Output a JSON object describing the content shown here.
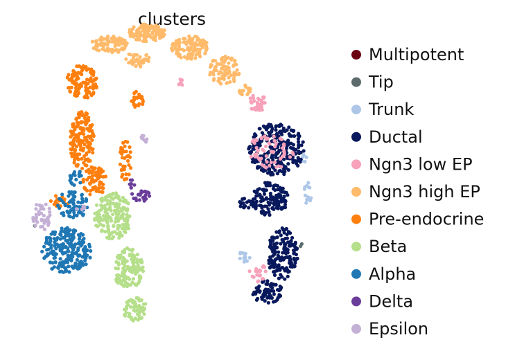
{
  "chart_data": {
    "type": "scatter",
    "title": "clusters",
    "xlabel": "",
    "ylabel": "",
    "xlim": [
      0,
      100
    ],
    "ylim": [
      0,
      100
    ],
    "grid": false,
    "axes_visible": false,
    "legend_placement": "right",
    "point_radius_note": "small dots",
    "series": [
      {
        "name": "Multipotent",
        "color": "#6b0013",
        "regions": []
      },
      {
        "name": "Tip",
        "color": "#5c6b6b",
        "regions": [
          {
            "cx": 6,
            "cy": 37,
            "rx": 0.5,
            "ry": 0.5,
            "n": 2
          },
          {
            "cx": 92,
            "cy": 30,
            "rx": 0.5,
            "ry": 0.5,
            "n": 2
          }
        ]
      },
      {
        "name": "Trunk",
        "color": "#aec7e8",
        "regions": [
          {
            "cx": 94,
            "cy": 48,
            "rx": 1.5,
            "ry": 4,
            "n": 14
          },
          {
            "cx": 74,
            "cy": 26,
            "rx": 2,
            "ry": 3,
            "n": 14
          },
          {
            "cx": 93,
            "cy": 60,
            "rx": 1,
            "ry": 2,
            "n": 6
          }
        ]
      },
      {
        "name": "Ductal",
        "color": "#08185c",
        "regions": [
          {
            "cx": 84,
            "cy": 63,
            "rx": 9,
            "ry": 9,
            "n": 260
          },
          {
            "cx": 82,
            "cy": 46,
            "rx": 6,
            "ry": 6,
            "n": 120
          },
          {
            "cx": 86,
            "cy": 27,
            "rx": 5,
            "ry": 9,
            "n": 160
          },
          {
            "cx": 81,
            "cy": 14,
            "rx": 5,
            "ry": 4,
            "n": 70
          },
          {
            "cx": 74,
            "cy": 44,
            "rx": 3,
            "ry": 2,
            "n": 20
          }
        ]
      },
      {
        "name": "Ngn3 low EP",
        "color": "#f7a1ba",
        "regions": [
          {
            "cx": 78,
            "cy": 79,
            "rx": 3,
            "ry": 3,
            "n": 40
          },
          {
            "cx": 82,
            "cy": 62,
            "rx": 8,
            "ry": 6,
            "n": 60
          },
          {
            "cx": 78,
            "cy": 20,
            "rx": 3,
            "ry": 4,
            "n": 20
          },
          {
            "cx": 53,
            "cy": 86,
            "rx": 1,
            "ry": 1,
            "n": 6
          }
        ]
      },
      {
        "name": "Ngn3 high EP",
        "color": "#ffbb6b",
        "regions": [
          {
            "cx": 42,
            "cy": 103,
            "rx": 6,
            "ry": 3,
            "n": 120
          },
          {
            "cx": 30,
            "cy": 99,
            "rx": 6,
            "ry": 3,
            "n": 90
          },
          {
            "cx": 56,
            "cy": 98,
            "rx": 6,
            "ry": 4,
            "n": 110
          },
          {
            "cx": 67,
            "cy": 90,
            "rx": 5,
            "ry": 5,
            "n": 80
          },
          {
            "cx": 74,
            "cy": 83,
            "rx": 2,
            "ry": 2,
            "n": 20
          },
          {
            "cx": 39,
            "cy": 94,
            "rx": 4,
            "ry": 3,
            "n": 40
          }
        ]
      },
      {
        "name": "Pre-endocrine",
        "color": "#ff7f0e",
        "regions": [
          {
            "cx": 21,
            "cy": 86,
            "rx": 5,
            "ry": 6,
            "n": 120
          },
          {
            "cx": 21,
            "cy": 66,
            "rx": 4,
            "ry": 10,
            "n": 160
          },
          {
            "cx": 25,
            "cy": 52,
            "rx": 4,
            "ry": 5,
            "n": 70
          },
          {
            "cx": 35,
            "cy": 59,
            "rx": 2,
            "ry": 7,
            "n": 35
          },
          {
            "cx": 39,
            "cy": 80,
            "rx": 2,
            "ry": 3,
            "n": 25
          },
          {
            "cx": 13,
            "cy": 45,
            "rx": 4,
            "ry": 2,
            "n": 15
          }
        ]
      },
      {
        "name": "Beta",
        "color": "#b5df8a",
        "regions": [
          {
            "cx": 31,
            "cy": 40,
            "rx": 6,
            "ry": 8,
            "n": 180
          },
          {
            "cx": 36,
            "cy": 22,
            "rx": 5,
            "ry": 7,
            "n": 130
          },
          {
            "cx": 38,
            "cy": 8,
            "rx": 4,
            "ry": 4,
            "n": 70
          }
        ]
      },
      {
        "name": "Alpha",
        "color": "#1f77b4",
        "regions": [
          {
            "cx": 16,
            "cy": 28,
            "rx": 8,
            "ry": 8,
            "n": 220
          },
          {
            "cx": 18,
            "cy": 44,
            "rx": 5,
            "ry": 5,
            "n": 70
          },
          {
            "cx": 19,
            "cy": 53,
            "rx": 2,
            "ry": 3,
            "n": 20
          }
        ]
      },
      {
        "name": "Delta",
        "color": "#6a3d9a",
        "regions": [
          {
            "cx": 40,
            "cy": 47,
            "rx": 3,
            "ry": 2,
            "n": 25
          },
          {
            "cx": 37,
            "cy": 51,
            "rx": 1,
            "ry": 2,
            "n": 8
          }
        ]
      },
      {
        "name": "Epsilon",
        "color": "#c5b0d5",
        "regions": [
          {
            "cx": 8,
            "cy": 40,
            "rx": 3,
            "ry": 5,
            "n": 40
          },
          {
            "cx": 41,
            "cy": 66,
            "rx": 1,
            "ry": 2,
            "n": 8
          },
          {
            "cx": 20,
            "cy": 43,
            "rx": 2,
            "ry": 1,
            "n": 6
          }
        ]
      }
    ]
  }
}
